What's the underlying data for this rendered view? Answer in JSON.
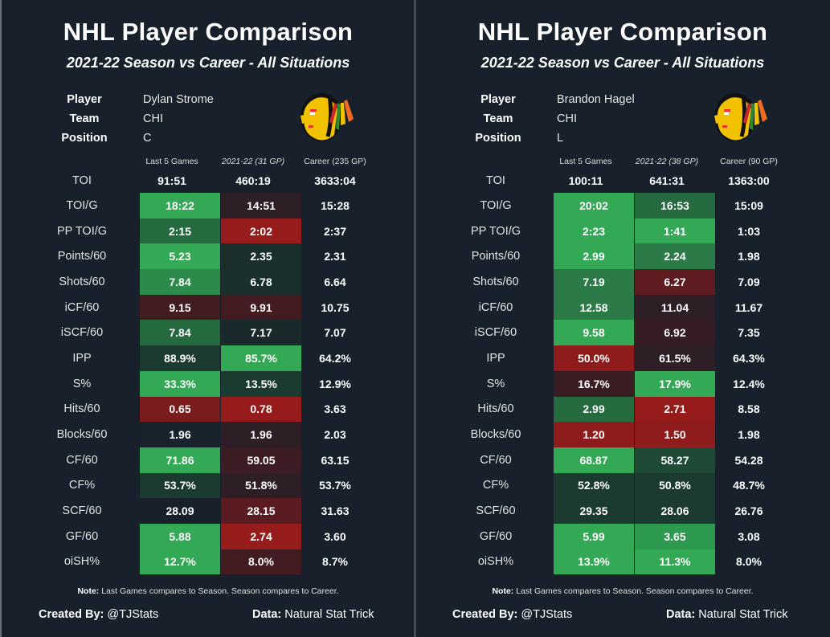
{
  "chart_data": [
    {
      "type": "table",
      "title": "NHL Player Comparison",
      "subtitle": "2021-22 Season vs Career - All Situations",
      "player": {
        "label": "Player",
        "value": "Dylan Strome"
      },
      "team": {
        "label": "Team",
        "value": "CHI"
      },
      "position": {
        "label": "Position",
        "value": "C"
      },
      "logo": "chicago-blackhawks-logo",
      "columns": [
        "Last 5 Games",
        "2021-22 (31 GP)",
        "Career (235 GP)"
      ],
      "toi": {
        "label": "TOI",
        "values": [
          "91:51",
          "460:19",
          "3633:04"
        ]
      },
      "rows": [
        {
          "label": "TOI/G",
          "values": [
            "18:22",
            "14:51",
            "15:28"
          ],
          "colors": [
            "#33a955",
            "#2e1f26",
            null
          ]
        },
        {
          "label": "PP TOI/G",
          "values": [
            "2:15",
            "2:02",
            "2:37"
          ],
          "colors": [
            "#266a40",
            "#961c1c",
            null
          ]
        },
        {
          "label": "Points/60",
          "values": [
            "5.23",
            "2.35",
            "2.31"
          ],
          "colors": [
            "#33a955",
            "#1a2e2c",
            null
          ]
        },
        {
          "label": "Shots/60",
          "values": [
            "7.84",
            "6.78",
            "6.64"
          ],
          "colors": [
            "#2c8a4a",
            "#1a2e2c",
            null
          ]
        },
        {
          "label": "iCF/60",
          "values": [
            "9.15",
            "9.91",
            "10.75"
          ],
          "colors": [
            "#431c22",
            "#431c22",
            null
          ]
        },
        {
          "label": "iSCF/60",
          "values": [
            "7.84",
            "7.17",
            "7.07"
          ],
          "colors": [
            "#256a3f",
            "#1a2a2c",
            null
          ]
        },
        {
          "label": "IPP",
          "values": [
            "88.9%",
            "85.7%",
            "64.2%"
          ],
          "colors": [
            "#1b3b30",
            "#33a955",
            null
          ]
        },
        {
          "label": "S%",
          "values": [
            "33.3%",
            "13.5%",
            "12.9%"
          ],
          "colors": [
            "#33a955",
            "#1b3b30",
            null
          ]
        },
        {
          "label": "Hits/60",
          "values": [
            "0.65",
            "0.78",
            "3.63"
          ],
          "colors": [
            "#7a1c1e",
            "#961c1c",
            null
          ]
        },
        {
          "label": "Blocks/60",
          "values": [
            "1.96",
            "1.96",
            "2.03"
          ],
          "colors": [
            "#17222c",
            "#2e1f26",
            null
          ]
        },
        {
          "label": "CF/60",
          "values": [
            "71.86",
            "59.05",
            "63.15"
          ],
          "colors": [
            "#33a955",
            "#3d1d23",
            null
          ]
        },
        {
          "label": "CF%",
          "values": [
            "53.7%",
            "51.8%",
            "53.7%"
          ],
          "colors": [
            "#1b3b30",
            "#2e1f26",
            null
          ]
        },
        {
          "label": "SCF/60",
          "values": [
            "28.09",
            "28.15",
            "31.63"
          ],
          "colors": [
            "#17202b",
            "#5a1c20",
            null
          ]
        },
        {
          "label": "GF/60",
          "values": [
            "5.88",
            "2.74",
            "3.60"
          ],
          "colors": [
            "#33a955",
            "#961c1c",
            null
          ]
        },
        {
          "label": "oiSH%",
          "values": [
            "12.7%",
            "8.0%",
            "8.7%"
          ],
          "colors": [
            "#33a955",
            "#431c22",
            null
          ]
        }
      ]
    },
    {
      "type": "table",
      "title": "NHL Player Comparison",
      "subtitle": "2021-22 Season vs Career - All Situations",
      "player": {
        "label": "Player",
        "value": "Brandon Hagel"
      },
      "team": {
        "label": "Team",
        "value": "CHI"
      },
      "position": {
        "label": "Position",
        "value": "L"
      },
      "logo": "chicago-blackhawks-logo",
      "columns": [
        "Last 5 Games",
        "2021-22 (38 GP)",
        "Career (90 GP)"
      ],
      "toi": {
        "label": "TOI",
        "values": [
          "100:11",
          "641:31",
          "1363:00"
        ]
      },
      "rows": [
        {
          "label": "TOI/G",
          "values": [
            "20:02",
            "16:53",
            "15:09"
          ],
          "colors": [
            "#33a955",
            "#266a40",
            null
          ]
        },
        {
          "label": "PP TOI/G",
          "values": [
            "2:23",
            "1:41",
            "1:03"
          ],
          "colors": [
            "#33a955",
            "#33a955",
            null
          ]
        },
        {
          "label": "Points/60",
          "values": [
            "2.99",
            "2.24",
            "1.98"
          ],
          "colors": [
            "#33a955",
            "#2c7a47",
            null
          ]
        },
        {
          "label": "Shots/60",
          "values": [
            "7.19",
            "6.27",
            "7.09"
          ],
          "colors": [
            "#2c7a47",
            "#5e1c20",
            null
          ]
        },
        {
          "label": "iCF/60",
          "values": [
            "12.58",
            "11.04",
            "11.67"
          ],
          "colors": [
            "#2c7a47",
            "#2e1f26",
            null
          ]
        },
        {
          "label": "iSCF/60",
          "values": [
            "9.58",
            "6.92",
            "7.35"
          ],
          "colors": [
            "#33a955",
            "#361d24",
            null
          ]
        },
        {
          "label": "IPP",
          "values": [
            "50.0%",
            "61.5%",
            "64.3%"
          ],
          "colors": [
            "#8e1c1c",
            "#2e1f26",
            null
          ]
        },
        {
          "label": "S%",
          "values": [
            "16.7%",
            "17.9%",
            "12.4%"
          ],
          "colors": [
            "#3a1d23",
            "#33a955",
            null
          ]
        },
        {
          "label": "Hits/60",
          "values": [
            "2.99",
            "2.71",
            "8.58"
          ],
          "colors": [
            "#266a40",
            "#961c1c",
            null
          ]
        },
        {
          "label": "Blocks/60",
          "values": [
            "1.20",
            "1.50",
            "1.98"
          ],
          "colors": [
            "#8e1c1c",
            "#8e1c1c",
            null
          ]
        },
        {
          "label": "CF/60",
          "values": [
            "68.87",
            "58.27",
            "54.28"
          ],
          "colors": [
            "#33a955",
            "#1e4a36",
            null
          ]
        },
        {
          "label": "CF%",
          "values": [
            "52.8%",
            "50.8%",
            "48.7%"
          ],
          "colors": [
            "#1b3b30",
            "#1b3b30",
            null
          ]
        },
        {
          "label": "SCF/60",
          "values": [
            "29.35",
            "28.06",
            "26.76"
          ],
          "colors": [
            "#1b3b30",
            "#1b3b30",
            null
          ]
        },
        {
          "label": "GF/60",
          "values": [
            "5.99",
            "3.65",
            "3.08"
          ],
          "colors": [
            "#33a955",
            "#2e9a50",
            null
          ]
        },
        {
          "label": "oiSH%",
          "values": [
            "13.9%",
            "11.3%",
            "8.0%"
          ],
          "colors": [
            "#33a955",
            "#33a955",
            null
          ]
        }
      ]
    }
  ],
  "note": {
    "label": "Note:",
    "text": " Last Games compares to Season. Season compares to Career."
  },
  "footer": {
    "created_label": "Created By:",
    "created_value": " @TJStats",
    "data_label": "Data:",
    "data_value": " Natural Stat Trick"
  }
}
